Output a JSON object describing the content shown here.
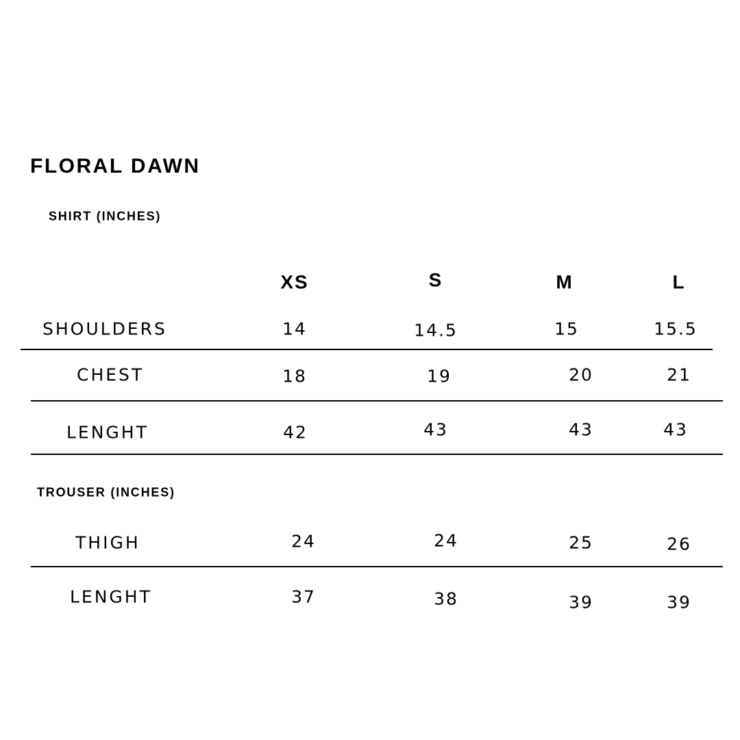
{
  "title": "FLORAL DAWN",
  "shirt_section": "SHIRT (INCHES)",
  "trouser_section": "TROUSER (INCHES)",
  "sizes": [
    "XS",
    "S",
    "M",
    "L"
  ],
  "shirt_rows": [
    {
      "label": "SHOULDERS",
      "values": [
        "14",
        "14.5",
        "15",
        "15.5"
      ]
    },
    {
      "label": "CHEST",
      "values": [
        "18",
        "19",
        "20",
        "21"
      ]
    },
    {
      "label": "LENGHT",
      "values": [
        "42",
        "43",
        "43",
        "43"
      ]
    }
  ],
  "trouser_rows": [
    {
      "label": "THIGH",
      "values": [
        "24",
        "24",
        "25",
        "26"
      ]
    },
    {
      "label": "LENGHT",
      "values": [
        "37",
        "38",
        "39",
        "39"
      ]
    }
  ]
}
